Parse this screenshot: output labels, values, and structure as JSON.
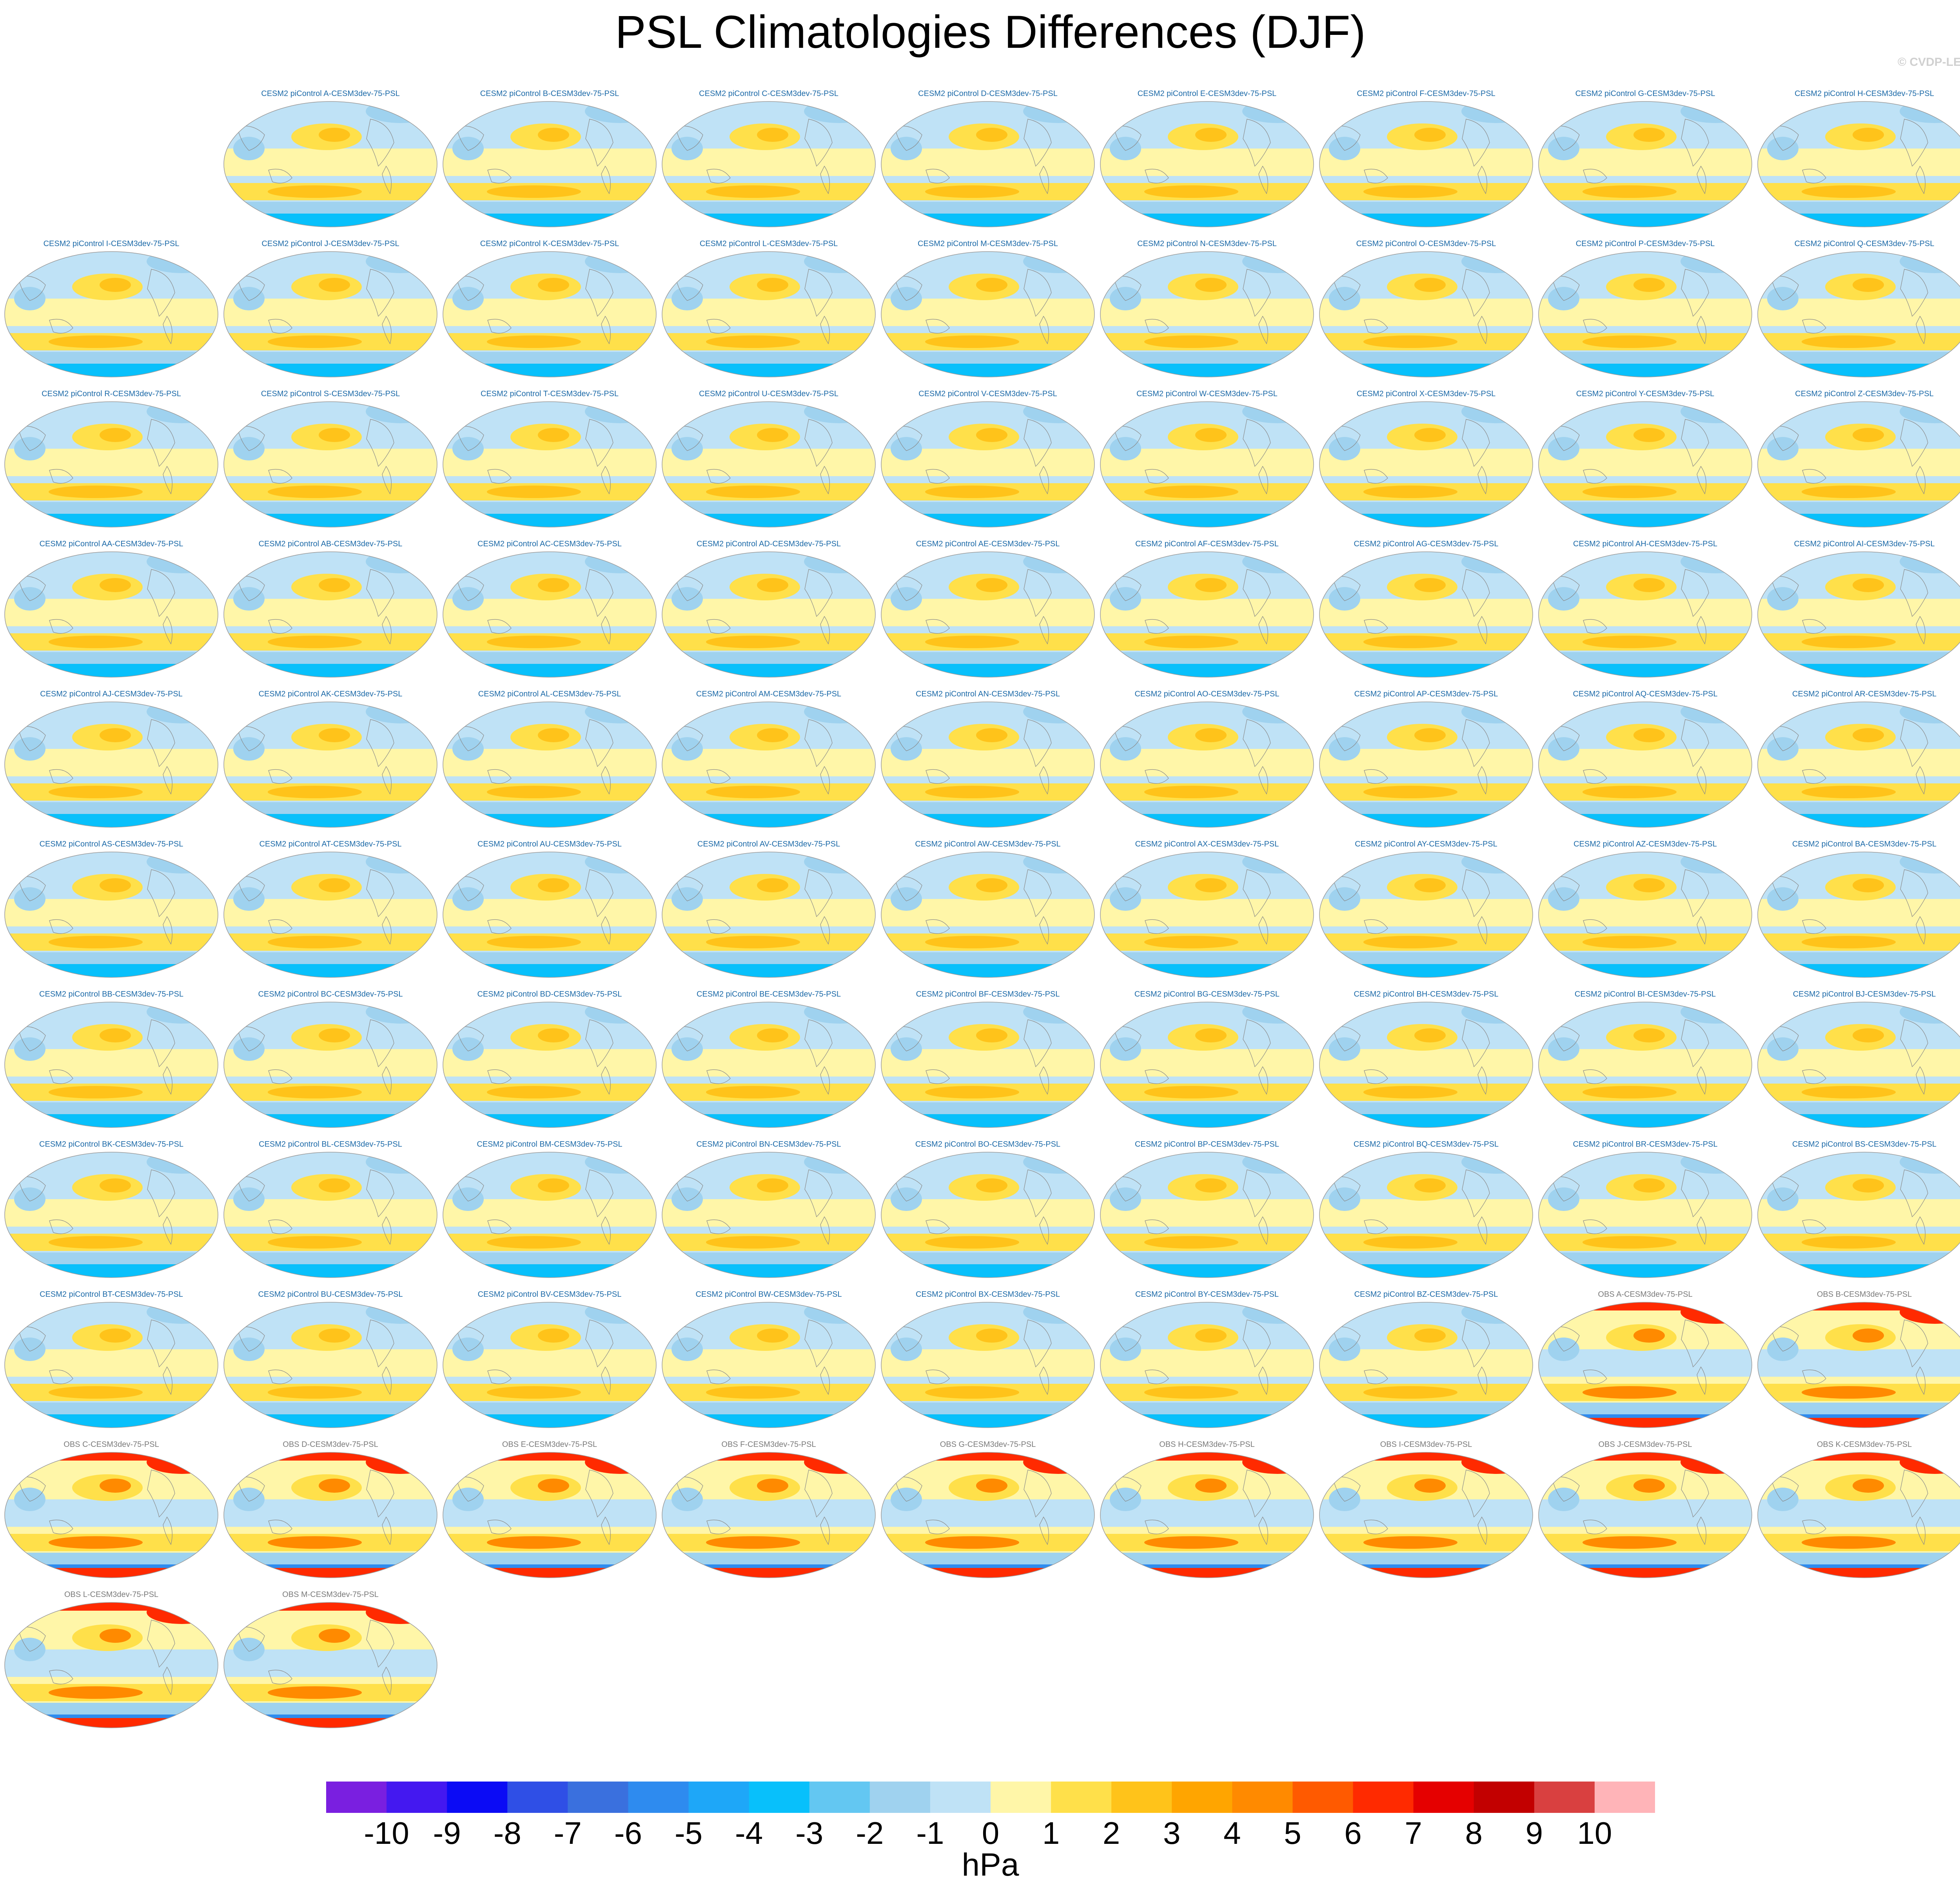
{
  "title": "PSL Climatologies Differences (DJF)",
  "credit": "© CVDP-LE",
  "chart_data": {
    "type": "heatmap",
    "title": "PSL Climatologies Differences (DJF)",
    "variable": "PSL",
    "season": "DJF",
    "units": "hPa",
    "colorbar": {
      "ticks": [
        -10,
        -9,
        -8,
        -7,
        -6,
        -5,
        -4,
        -3,
        -2,
        -1,
        0,
        1,
        2,
        3,
        4,
        5,
        6,
        7,
        8,
        9,
        10
      ],
      "tick_labels": [
        "-10",
        "-9",
        "-8",
        "-7",
        "-6",
        "-5",
        "-4",
        "-3",
        "-2",
        "-1",
        "0",
        "1",
        "2",
        "3",
        "4",
        "5",
        "6",
        "7",
        "8",
        "9",
        "10"
      ],
      "colors": [
        "#7a1fe0",
        "#4418f0",
        "#0b0bf5",
        "#2f4fe6",
        "#3a70de",
        "#2e8bef",
        "#1ea7f8",
        "#08c0fb",
        "#63c7f2",
        "#9fd2ef",
        "#bfe2f6",
        "#fff6a8",
        "#ffe04a",
        "#ffc31a",
        "#ffa500",
        "#ff8a00",
        "#ff5a00",
        "#ff2a00",
        "#e50000",
        "#c20000",
        "#d94040",
        "#ffb4b8"
      ]
    },
    "panels": [
      {
        "label": "CESM2 piControl A-CESM3dev-75-PSL",
        "group": "model"
      },
      {
        "label": "CESM2 piControl B-CESM3dev-75-PSL",
        "group": "model"
      },
      {
        "label": "CESM2 piControl C-CESM3dev-75-PSL",
        "group": "model"
      },
      {
        "label": "CESM2 piControl D-CESM3dev-75-PSL",
        "group": "model"
      },
      {
        "label": "CESM2 piControl E-CESM3dev-75-PSL",
        "group": "model"
      },
      {
        "label": "CESM2 piControl F-CESM3dev-75-PSL",
        "group": "model"
      },
      {
        "label": "CESM2 piControl G-CESM3dev-75-PSL",
        "group": "model"
      },
      {
        "label": "CESM2 piControl H-CESM3dev-75-PSL",
        "group": "model"
      },
      {
        "label": "CESM2 piControl I-CESM3dev-75-PSL",
        "group": "model"
      },
      {
        "label": "CESM2 piControl J-CESM3dev-75-PSL",
        "group": "model"
      },
      {
        "label": "CESM2 piControl K-CESM3dev-75-PSL",
        "group": "model"
      },
      {
        "label": "CESM2 piControl L-CESM3dev-75-PSL",
        "group": "model"
      },
      {
        "label": "CESM2 piControl M-CESM3dev-75-PSL",
        "group": "model"
      },
      {
        "label": "CESM2 piControl N-CESM3dev-75-PSL",
        "group": "model"
      },
      {
        "label": "CESM2 piControl O-CESM3dev-75-PSL",
        "group": "model"
      },
      {
        "label": "CESM2 piControl P-CESM3dev-75-PSL",
        "group": "model"
      },
      {
        "label": "CESM2 piControl Q-CESM3dev-75-PSL",
        "group": "model"
      },
      {
        "label": "CESM2 piControl R-CESM3dev-75-PSL",
        "group": "model"
      },
      {
        "label": "CESM2 piControl S-CESM3dev-75-PSL",
        "group": "model"
      },
      {
        "label": "CESM2 piControl T-CESM3dev-75-PSL",
        "group": "model"
      },
      {
        "label": "CESM2 piControl U-CESM3dev-75-PSL",
        "group": "model"
      },
      {
        "label": "CESM2 piControl V-CESM3dev-75-PSL",
        "group": "model"
      },
      {
        "label": "CESM2 piControl W-CESM3dev-75-PSL",
        "group": "model"
      },
      {
        "label": "CESM2 piControl X-CESM3dev-75-PSL",
        "group": "model"
      },
      {
        "label": "CESM2 piControl Y-CESM3dev-75-PSL",
        "group": "model"
      },
      {
        "label": "CESM2 piControl Z-CESM3dev-75-PSL",
        "group": "model"
      },
      {
        "label": "CESM2 piControl AA-CESM3dev-75-PSL",
        "group": "model"
      },
      {
        "label": "CESM2 piControl AB-CESM3dev-75-PSL",
        "group": "model"
      },
      {
        "label": "CESM2 piControl AC-CESM3dev-75-PSL",
        "group": "model"
      },
      {
        "label": "CESM2 piControl AD-CESM3dev-75-PSL",
        "group": "model"
      },
      {
        "label": "CESM2 piControl AE-CESM3dev-75-PSL",
        "group": "model"
      },
      {
        "label": "CESM2 piControl AF-CESM3dev-75-PSL",
        "group": "model"
      },
      {
        "label": "CESM2 piControl AG-CESM3dev-75-PSL",
        "group": "model"
      },
      {
        "label": "CESM2 piControl AH-CESM3dev-75-PSL",
        "group": "model"
      },
      {
        "label": "CESM2 piControl AI-CESM3dev-75-PSL",
        "group": "model"
      },
      {
        "label": "CESM2 piControl AJ-CESM3dev-75-PSL",
        "group": "model"
      },
      {
        "label": "CESM2 piControl AK-CESM3dev-75-PSL",
        "group": "model"
      },
      {
        "label": "CESM2 piControl AL-CESM3dev-75-PSL",
        "group": "model"
      },
      {
        "label": "CESM2 piControl AM-CESM3dev-75-PSL",
        "group": "model"
      },
      {
        "label": "CESM2 piControl AN-CESM3dev-75-PSL",
        "group": "model"
      },
      {
        "label": "CESM2 piControl AO-CESM3dev-75-PSL",
        "group": "model"
      },
      {
        "label": "CESM2 piControl AP-CESM3dev-75-PSL",
        "group": "model"
      },
      {
        "label": "CESM2 piControl AQ-CESM3dev-75-PSL",
        "group": "model"
      },
      {
        "label": "CESM2 piControl AR-CESM3dev-75-PSL",
        "group": "model"
      },
      {
        "label": "CESM2 piControl AS-CESM3dev-75-PSL",
        "group": "model"
      },
      {
        "label": "CESM2 piControl AT-CESM3dev-75-PSL",
        "group": "model"
      },
      {
        "label": "CESM2 piControl AU-CESM3dev-75-PSL",
        "group": "model"
      },
      {
        "label": "CESM2 piControl AV-CESM3dev-75-PSL",
        "group": "model"
      },
      {
        "label": "CESM2 piControl AW-CESM3dev-75-PSL",
        "group": "model"
      },
      {
        "label": "CESM2 piControl AX-CESM3dev-75-PSL",
        "group": "model"
      },
      {
        "label": "CESM2 piControl AY-CESM3dev-75-PSL",
        "group": "model"
      },
      {
        "label": "CESM2 piControl AZ-CESM3dev-75-PSL",
        "group": "model"
      },
      {
        "label": "CESM2 piControl BA-CESM3dev-75-PSL",
        "group": "model"
      },
      {
        "label": "CESM2 piControl BB-CESM3dev-75-PSL",
        "group": "model"
      },
      {
        "label": "CESM2 piControl BC-CESM3dev-75-PSL",
        "group": "model"
      },
      {
        "label": "CESM2 piControl BD-CESM3dev-75-PSL",
        "group": "model"
      },
      {
        "label": "CESM2 piControl BE-CESM3dev-75-PSL",
        "group": "model"
      },
      {
        "label": "CESM2 piControl BF-CESM3dev-75-PSL",
        "group": "model"
      },
      {
        "label": "CESM2 piControl BG-CESM3dev-75-PSL",
        "group": "model"
      },
      {
        "label": "CESM2 piControl BH-CESM3dev-75-PSL",
        "group": "model"
      },
      {
        "label": "CESM2 piControl BI-CESM3dev-75-PSL",
        "group": "model"
      },
      {
        "label": "CESM2 piControl BJ-CESM3dev-75-PSL",
        "group": "model"
      },
      {
        "label": "CESM2 piControl BK-CESM3dev-75-PSL",
        "group": "model"
      },
      {
        "label": "CESM2 piControl BL-CESM3dev-75-PSL",
        "group": "model"
      },
      {
        "label": "CESM2 piControl BM-CESM3dev-75-PSL",
        "group": "model"
      },
      {
        "label": "CESM2 piControl BN-CESM3dev-75-PSL",
        "group": "model"
      },
      {
        "label": "CESM2 piControl BO-CESM3dev-75-PSL",
        "group": "model"
      },
      {
        "label": "CESM2 piControl BP-CESM3dev-75-PSL",
        "group": "model"
      },
      {
        "label": "CESM2 piControl BQ-CESM3dev-75-PSL",
        "group": "model"
      },
      {
        "label": "CESM2 piControl BR-CESM3dev-75-PSL",
        "group": "model"
      },
      {
        "label": "CESM2 piControl BS-CESM3dev-75-PSL",
        "group": "model"
      },
      {
        "label": "CESM2 piControl BT-CESM3dev-75-PSL",
        "group": "model"
      },
      {
        "label": "CESM2 piControl BU-CESM3dev-75-PSL",
        "group": "model"
      },
      {
        "label": "CESM2 piControl BV-CESM3dev-75-PSL",
        "group": "model"
      },
      {
        "label": "CESM2 piControl BW-CESM3dev-75-PSL",
        "group": "model"
      },
      {
        "label": "CESM2 piControl BX-CESM3dev-75-PSL",
        "group": "model"
      },
      {
        "label": "CESM2 piControl BY-CESM3dev-75-PSL",
        "group": "model"
      },
      {
        "label": "CESM2 piControl BZ-CESM3dev-75-PSL",
        "group": "model"
      },
      {
        "label": "OBS A-CESM3dev-75-PSL",
        "group": "obs"
      },
      {
        "label": "OBS B-CESM3dev-75-PSL",
        "group": "obs"
      },
      {
        "label": "OBS C-CESM3dev-75-PSL",
        "group": "obs"
      },
      {
        "label": "OBS D-CESM3dev-75-PSL",
        "group": "obs"
      },
      {
        "label": "OBS E-CESM3dev-75-PSL",
        "group": "obs"
      },
      {
        "label": "OBS F-CESM3dev-75-PSL",
        "group": "obs"
      },
      {
        "label": "OBS G-CESM3dev-75-PSL",
        "group": "obs"
      },
      {
        "label": "OBS H-CESM3dev-75-PSL",
        "group": "obs"
      },
      {
        "label": "OBS I-CESM3dev-75-PSL",
        "group": "obs"
      },
      {
        "label": "OBS J-CESM3dev-75-PSL",
        "group": "obs"
      },
      {
        "label": "OBS K-CESM3dev-75-PSL",
        "group": "obs"
      },
      {
        "label": "OBS L-CESM3dev-75-PSL",
        "group": "obs"
      },
      {
        "label": "OBS M-CESM3dev-75-PSL",
        "group": "obs"
      }
    ]
  }
}
